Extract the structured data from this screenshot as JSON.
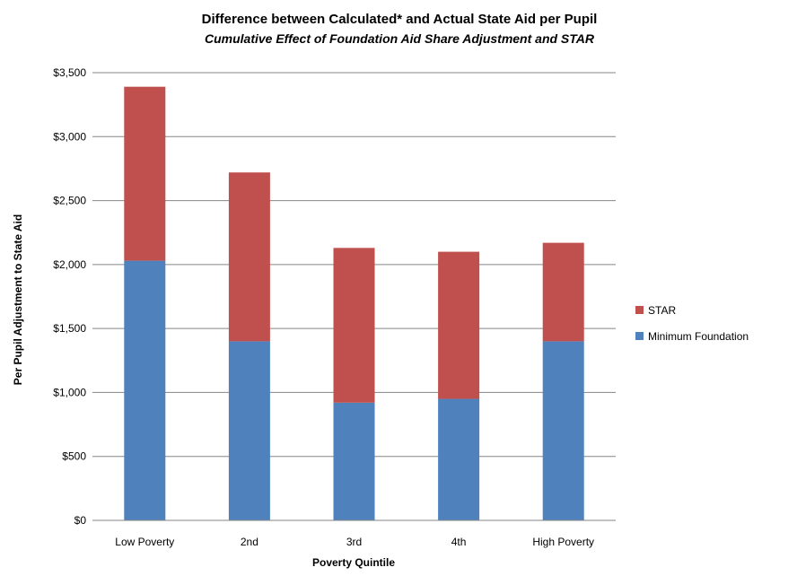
{
  "chart_data": {
    "type": "bar",
    "stacked": true,
    "title": "Difference between Calculated* and Actual State Aid per Pupil",
    "subtitle": "Cumulative Effect  of Foundation Aid Share Adjustment and STAR",
    "xlabel": "Poverty Quintile",
    "ylabel": "Per Pupil Adjustment to State Aid",
    "categories": [
      "Low Poverty",
      "2nd",
      "3rd",
      "4th",
      "High Poverty"
    ],
    "series": [
      {
        "name": "Minimum Foundation",
        "color": "#4F81BD",
        "values": [
          2030,
          1400,
          920,
          950,
          1400
        ]
      },
      {
        "name": "STAR",
        "color": "#C0504D",
        "values": [
          1360,
          1320,
          1210,
          1150,
          770
        ]
      }
    ],
    "ylim": [
      0,
      3500
    ],
    "yticks": [
      0,
      500,
      1000,
      1500,
      2000,
      2500,
      3000,
      3500
    ],
    "ytick_labels": [
      "$0",
      "$500",
      "$1,000",
      "$1,500",
      "$2,000",
      "$2,500",
      "$3,000",
      "$3,500"
    ],
    "grid": true,
    "legend_position": "right",
    "legend_order": [
      "STAR",
      "Minimum Foundation"
    ]
  }
}
